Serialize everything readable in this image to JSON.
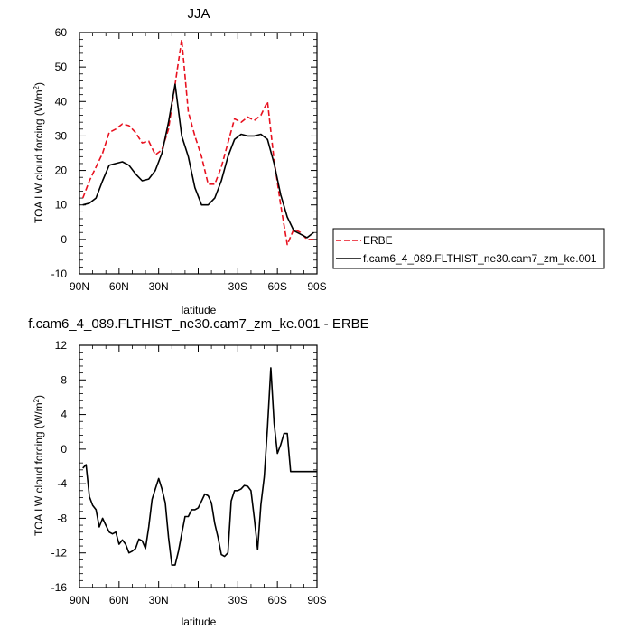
{
  "chart_data": [
    {
      "type": "line",
      "title": "JJA",
      "xlabel": "latitude",
      "ylabel": "TOA LW cloud forcing (W/m",
      "ylabel_sup": "2",
      "ylabel_tail": ")",
      "xlim": [
        90,
        -90
      ],
      "ylim": [
        -10,
        60
      ],
      "x_ticks": [
        90,
        60,
        30,
        0,
        -30,
        -60,
        -90
      ],
      "x_tick_labels": [
        "90N",
        "60N",
        "30N",
        "",
        "30S",
        "60S",
        "90S"
      ],
      "y_ticks": [
        -10,
        0,
        10,
        20,
        30,
        40,
        50,
        60
      ],
      "y_tick_labels": [
        "-10",
        "0",
        "10",
        "20",
        "30",
        "40",
        "50",
        "60"
      ],
      "legend_position": "right",
      "series": [
        {
          "name": "ERBE",
          "color": "#e8111f",
          "dash": "dashed",
          "x": [
            87.5,
            82.5,
            77.5,
            72.5,
            67.5,
            62.5,
            57.5,
            52.5,
            47.5,
            42.5,
            37.5,
            32.5,
            27.5,
            22.5,
            17.5,
            12.5,
            7.5,
            2.5,
            -2.5,
            -7.5,
            -12.5,
            -17.5,
            -22.5,
            -27.5,
            -32.5,
            -37.5,
            -42.5,
            -47.5,
            -52.5,
            -57.5,
            -62.5,
            -67.5,
            -72.5,
            -77.5,
            -82.5,
            -87.5
          ],
          "y": [
            12,
            17,
            21,
            25,
            31,
            32,
            33.5,
            33,
            31,
            28,
            28.5,
            24.5,
            26,
            32,
            45,
            58,
            37,
            30,
            24,
            16,
            16,
            21,
            28,
            35,
            34,
            35.5,
            34.5,
            36,
            40,
            23,
            10,
            -1.5,
            3,
            2,
            0,
            0
          ]
        },
        {
          "name": "f.cam6_4_089.FLTHIST_ne30.cam7_zm_ke.001",
          "color": "#000000",
          "dash": "solid",
          "x": [
            87.5,
            82.5,
            77.5,
            72.5,
            67.5,
            62.5,
            57.5,
            52.5,
            47.5,
            42.5,
            37.5,
            32.5,
            27.5,
            22.5,
            17.5,
            12.5,
            7.5,
            2.5,
            -2.5,
            -7.5,
            -12.5,
            -17.5,
            -22.5,
            -27.5,
            -32.5,
            -37.5,
            -42.5,
            -47.5,
            -52.5,
            -57.5,
            -62.5,
            -67.5,
            -72.5,
            -77.5,
            -82.5,
            -87.5
          ],
          "y": [
            10,
            10.5,
            12,
            17,
            21.5,
            22,
            22.5,
            21.5,
            19,
            17,
            17.5,
            20,
            25,
            34,
            45,
            30,
            24,
            15,
            10,
            10,
            12,
            17,
            24,
            29,
            30.5,
            30,
            30,
            30.5,
            29,
            22,
            13,
            6.5,
            2.5,
            1.5,
            0.5,
            2
          ]
        }
      ]
    },
    {
      "type": "line",
      "title": "f.cam6_4_089.FLTHIST_ne30.cam7_zm_ke.001 - ERBE",
      "xlabel": "latitude",
      "ylabel": "TOA LW cloud forcing (W/m",
      "ylabel_sup": "2",
      "ylabel_tail": ")",
      "xlim": [
        90,
        -90
      ],
      "ylim": [
        -16,
        12
      ],
      "x_ticks": [
        90,
        60,
        30,
        0,
        -30,
        -60,
        -90
      ],
      "x_tick_labels": [
        "90N",
        "60N",
        "30N",
        "",
        "30S",
        "60S",
        "90S"
      ],
      "y_ticks": [
        -16,
        -12,
        -8,
        -4,
        0,
        4,
        8,
        12
      ],
      "y_tick_labels": [
        "-16",
        "-12",
        "-8",
        "-4",
        "0",
        "4",
        "8",
        "12"
      ],
      "series": [
        {
          "color": "#000000",
          "dash": "solid",
          "x": [
            87.5,
            85,
            82.5,
            80,
            77.5,
            75,
            72.5,
            70,
            67.5,
            65,
            62.5,
            60,
            57.5,
            55,
            52.5,
            50,
            47.5,
            45,
            42.5,
            40,
            37.5,
            35,
            32.5,
            30,
            27.5,
            25,
            22.5,
            20,
            17.5,
            15,
            12.5,
            10,
            7.5,
            5,
            2.5,
            0,
            -2.5,
            -5,
            -7.5,
            -10,
            -12.5,
            -15,
            -17.5,
            -20,
            -22.5,
            -25,
            -27.5,
            -30,
            -32.5,
            -35,
            -37.5,
            -40,
            -42.5,
            -45,
            -47.5,
            -50,
            -52.5,
            -55,
            -57.5,
            -60,
            -62.5,
            -65,
            -67.5,
            -70,
            -72.5,
            -75,
            -77.5,
            -80,
            -82.5,
            -85,
            -87.5,
            -90
          ],
          "y": [
            -2.2,
            -1.8,
            -5.5,
            -6.5,
            -7,
            -9,
            -8,
            -8.8,
            -9.6,
            -9.8,
            -9.6,
            -11,
            -10.5,
            -11,
            -12,
            -11.8,
            -11.5,
            -10.4,
            -10.6,
            -11.5,
            -9,
            -5.8,
            -4.6,
            -3.4,
            -4.6,
            -6.2,
            -10.2,
            -13.4,
            -13.4,
            -11.8,
            -9.8,
            -7.8,
            -7.8,
            -7,
            -7,
            -6.8,
            -6,
            -5.2,
            -5.4,
            -6.2,
            -8.6,
            -10.2,
            -12.2,
            -12.4,
            -12,
            -6,
            -4.8,
            -4.8,
            -4.6,
            -4.2,
            -4.3,
            -4.8,
            -8,
            -11.6,
            -6.4,
            -3.2,
            2.5,
            9.4,
            3,
            -0.5,
            0.5,
            1.8,
            1.8,
            -2.6,
            -2.6,
            -2.6,
            -2.6,
            -2.6,
            -2.6,
            -2.6,
            -2.6,
            -2.6
          ]
        }
      ]
    }
  ]
}
